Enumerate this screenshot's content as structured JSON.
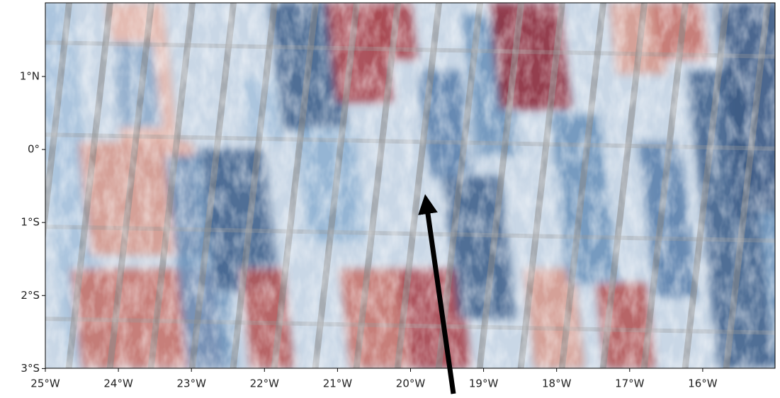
{
  "map": {
    "lat_labels": [
      "1°N",
      "0°",
      "1°S",
      "2°S",
      "3°S"
    ],
    "lon_labels": [
      "25°W",
      "24°W",
      "23°W",
      "22°W",
      "21°W",
      "20°W",
      "19°W",
      "18°W",
      "17°W",
      "16°W"
    ]
  }
}
